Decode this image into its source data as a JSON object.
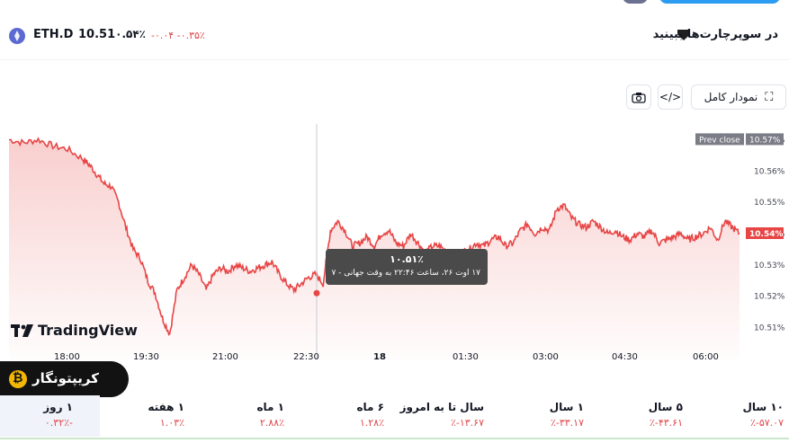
{
  "header": {
    "symbol": "ETH.D",
    "price": "10.51",
    "price_suffix": "۰.۵۴٪",
    "change_abs": "-۰.۰۴",
    "change_pct": "-۰.۳۵٪",
    "supercharts": "در سوپرچارت‌ها ببینید",
    "icon_eth": "eth-icon",
    "icon_super": "supercharts-icon"
  },
  "toolbar": {
    "fullscreen_label": "نمودار کامل",
    "embed_icon": "embed-code-icon",
    "camera_icon": "camera-icon"
  },
  "chart_data": {
    "type": "area",
    "title": "",
    "xlabel": "",
    "ylabel": "",
    "y_ticks": [
      "10.57%",
      "10.56%",
      "10.55%",
      "10.54%",
      "10.53%",
      "10.52%",
      "10.51%"
    ],
    "ylim": [
      10.505,
      10.575
    ],
    "x_ticks": [
      "18:00",
      "19:30",
      "21:00",
      "22:30",
      "18",
      "01:30",
      "03:00",
      "04:30",
      "06:00"
    ],
    "prev_close_label": "Prev close",
    "prev_close_value": "10.57%",
    "last_value": "10.54%",
    "series": [
      {
        "x": [
          0,
          0.02,
          0.04,
          0.06,
          0.08,
          0.1,
          0.11,
          0.12,
          0.13,
          0.14,
          0.15,
          0.16,
          0.17,
          0.18,
          0.19,
          0.2,
          0.21,
          0.22,
          0.23,
          0.24,
          0.25,
          0.26,
          0.27,
          0.28,
          0.29,
          0.3,
          0.31,
          0.32,
          0.33,
          0.34,
          0.35,
          0.36,
          0.37,
          0.38,
          0.39,
          0.4,
          0.41,
          0.42,
          0.43,
          0.44,
          0.45,
          0.46,
          0.47,
          0.48,
          0.49,
          0.5,
          0.51,
          0.52,
          0.53,
          0.54,
          0.55,
          0.56,
          0.57,
          0.58,
          0.59,
          0.6,
          0.61,
          0.62,
          0.63,
          0.64,
          0.65,
          0.66,
          0.67,
          0.68,
          0.69,
          0.7,
          0.71,
          0.72,
          0.73,
          0.74,
          0.75,
          0.76,
          0.77,
          0.78,
          0.79,
          0.8,
          0.81,
          0.82,
          0.83,
          0.84,
          0.85,
          0.86,
          0.87,
          0.88,
          0.89,
          0.9,
          0.91,
          0.92,
          0.93,
          0.94,
          0.95,
          0.96,
          0.97,
          0.98,
          0.99,
          1.0
        ],
        "y": [
          10.57,
          10.569,
          10.57,
          10.568,
          10.567,
          10.564,
          10.562,
          10.559,
          10.556,
          10.555,
          10.55,
          10.542,
          10.535,
          10.532,
          10.525,
          10.521,
          10.513,
          10.508,
          10.522,
          10.526,
          10.53,
          10.527,
          10.522,
          10.527,
          10.529,
          10.528,
          10.53,
          10.529,
          10.528,
          10.529,
          10.53,
          10.531,
          10.527,
          10.524,
          10.522,
          10.524,
          10.526,
          10.527,
          10.524,
          10.541,
          10.544,
          10.541,
          10.536,
          10.537,
          10.539,
          10.536,
          10.54,
          10.541,
          10.537,
          10.536,
          10.54,
          10.537,
          10.534,
          10.536,
          10.536,
          10.534,
          10.533,
          10.534,
          10.535,
          10.537,
          10.536,
          10.538,
          10.539,
          10.536,
          10.537,
          10.541,
          10.543,
          10.54,
          10.542,
          10.541,
          10.548,
          10.549,
          10.545,
          10.543,
          10.542,
          10.544,
          10.542,
          10.54,
          10.541,
          10.539,
          10.538,
          10.54,
          10.539,
          10.541,
          10.537,
          10.538,
          10.539,
          10.54,
          10.538,
          10.539,
          10.54,
          10.542,
          10.538,
          10.544,
          10.542,
          10.54
        ]
      }
    ],
    "crosshair_value": "۱۰.۵۱٪",
    "crosshair_time": "۱۷ اوت ۲۶، ساعت ۲۲:۴۶ به وقت جهانی - ۷",
    "line_color": "#e84545",
    "fill_color": "#f8c9c9",
    "grid": false,
    "legend": "none"
  },
  "branding": {
    "tradingview": "TradingView",
    "badge_text": "کریپتونگار"
  },
  "periods": [
    {
      "label": "۱۰ سال",
      "value": "۵۷.۰۷-٪"
    },
    {
      "label": "۵ سال",
      "value": "۴۳.۶۱-٪"
    },
    {
      "label": "۱ سال",
      "value": "۳۳.۱۷-٪"
    },
    {
      "label": "سال تا به امروز",
      "value": "۱۳.۶۷-٪"
    },
    {
      "label": "۶ ماه",
      "value": "۱.۲۸٪"
    },
    {
      "label": "۱ ماه",
      "value": "۲.۸۸٪"
    },
    {
      "label": "۱ هفته",
      "value": "۱.۰۳٪"
    },
    {
      "label": "۱ روز",
      "value": "-۰.۳۲٪"
    }
  ]
}
